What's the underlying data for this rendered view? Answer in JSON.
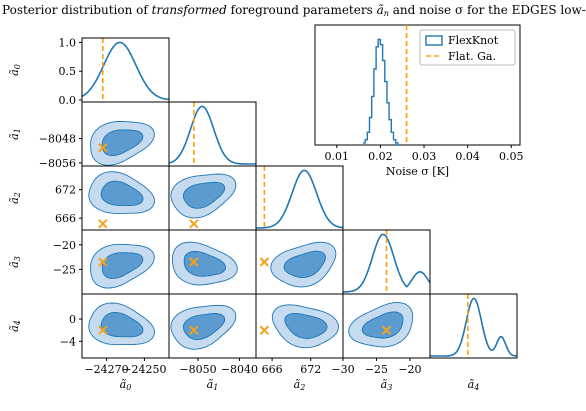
{
  "colors": {
    "flexknot": "#1f77b4",
    "flexknot_fill_outer": "#c6dbef",
    "flexknot_fill_inner": "#5b9bd0",
    "flat_ga": "#ff9f0e",
    "marker": "#f5a21b"
  },
  "chart_data": {
    "type": "corner",
    "title": "Posterior distribution of transformed foreground parameters ã_n and noise σ for the EDGES low-band data",
    "title_parts": {
      "pre": "Posterior distribution of ",
      "italic": "transformed",
      "mid": " foreground parameters ",
      "symbol": "ã",
      "sub": "n",
      "post": " and noise σ for the EDGES low-band data"
    },
    "parameters": [
      {
        "label": "ã",
        "sub": "0",
        "range": [
          -24283,
          -24237
        ],
        "ticks": [
          -24270,
          -24250
        ],
        "tick_labels": [
          "−24270",
          "−24250"
        ],
        "flat_ga": -24272
      },
      {
        "label": "ã",
        "sub": "1",
        "range": [
          -8057,
          -8036
        ],
        "ticks": [
          -8048,
          -8056
        ],
        "ticks_x": [
          -8050,
          -8040
        ],
        "tick_labels_x": [
          "−8050",
          "−8040"
        ],
        "tick_labels_y": [
          "−8048",
          "−8056"
        ],
        "flat_ga": -8051
      },
      {
        "label": "ã",
        "sub": "2",
        "range": [
          663.5,
          677
        ],
        "ticks": [
          666,
          672
        ],
        "tick_labels": [
          "666",
          "672"
        ],
        "flat_ga": 664.8
      },
      {
        "label": "ã",
        "sub": "3",
        "range": [
          -30,
          -17
        ],
        "ticks": [
          -20,
          -25
        ],
        "ticks_x": [
          -30,
          -25,
          -20
        ],
        "tick_labels_y": [
          "−20",
          "−25"
        ],
        "tick_labels_x": [
          "−30",
          "−25",
          "−20"
        ],
        "flat_ga": -23.5
      },
      {
        "label": "ã",
        "sub": "4",
        "range": [
          -7,
          4.5
        ],
        "ticks": [
          0,
          -4
        ],
        "tick_labels_y": [
          "0",
          "−4"
        ],
        "flat_ga": -2.0
      }
    ],
    "diag_yaxis": {
      "ticks": [
        0.0,
        0.5,
        1.0
      ],
      "tick_labels": [
        "0.0",
        "0.5",
        "1.0"
      ]
    },
    "noise_panel": {
      "xlabel": "Noise σ [K]",
      "xlim": [
        0.005,
        0.052
      ],
      "xticks": [
        0.01,
        0.02,
        0.03,
        0.04,
        0.05
      ],
      "xtick_labels": [
        "0.01",
        "0.02",
        "0.03",
        "0.04",
        "0.05"
      ],
      "flat_ga": 0.026,
      "histogram": {
        "bin_edges": [
          0.016,
          0.0165,
          0.017,
          0.0175,
          0.018,
          0.0185,
          0.019,
          0.0195,
          0.02,
          0.0205,
          0.021,
          0.0215,
          0.022,
          0.0225,
          0.023,
          0.0235,
          0.024,
          0.0245
        ],
        "counts": [
          0.02,
          0.05,
          0.12,
          0.26,
          0.46,
          0.72,
          0.93,
          1.0,
          0.95,
          0.8,
          0.6,
          0.4,
          0.24,
          0.12,
          0.05,
          0.02,
          0.0
        ]
      }
    },
    "legend": {
      "position": "top-right",
      "entries": [
        {
          "name": "FlexKnot",
          "style": "patch"
        },
        {
          "name": "Flat. Ga.",
          "style": "dashed-line"
        }
      ]
    },
    "marginals": [
      {
        "param": 0,
        "mean": -24263,
        "sd": 8.5
      },
      {
        "param": 1,
        "mean": -8049,
        "sd": 2.8
      },
      {
        "param": 2,
        "mean": 671.0,
        "sd": 1.9
      },
      {
        "param": 3,
        "mean": -24.0,
        "sd": 1.6,
        "skew_tail": -18.5
      },
      {
        "param": 4,
        "mean": -1.2,
        "sd": 1.0,
        "secondary": {
          "mean": 2.4,
          "sd": 0.6,
          "weight": 0.25
        }
      }
    ]
  }
}
